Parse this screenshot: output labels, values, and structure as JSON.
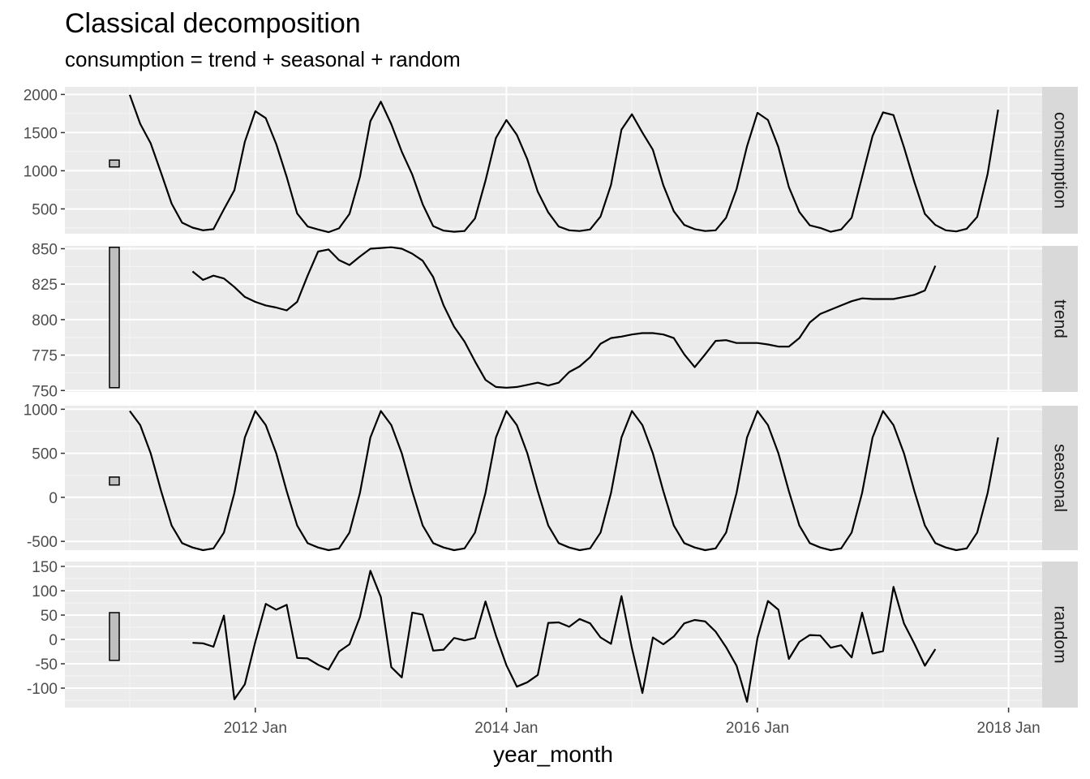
{
  "chart_data": {
    "type": "line",
    "title": "Classical decomposition",
    "subtitle": "consumption = trend + seasonal + random",
    "xlabel": "year_month",
    "x_start": "2011 Jan",
    "x_ticks": [
      "2012 Jan",
      "2014 Jan",
      "2016 Jan",
      "2018 Jan"
    ],
    "grid": true,
    "facet_strip_color": "#d9d9d9",
    "panel_color": "#ebebeb",
    "line_color": "#000000",
    "panels": [
      {
        "name": "consumption",
        "ylim": [
          175,
          2100
        ],
        "ticks": [
          500,
          1000,
          1500,
          2000
        ],
        "tick_labels": [
          "500",
          "1000",
          "1500",
          "2000"
        ],
        "scale_bar": [
          1050,
          1140
        ],
        "start_index": 0,
        "values": [
          1995,
          1615,
          1360,
          970,
          570,
          320,
          255,
          220,
          235,
          495,
          745,
          1380,
          1780,
          1690,
          1350,
          920,
          440,
          270,
          230,
          195,
          245,
          435,
          920,
          1650,
          1905,
          1610,
          1250,
          950,
          560,
          275,
          215,
          200,
          210,
          375,
          870,
          1430,
          1665,
          1470,
          1150,
          725,
          455,
          270,
          220,
          210,
          230,
          400,
          815,
          1540,
          1740,
          1500,
          1275,
          810,
          470,
          290,
          235,
          210,
          220,
          385,
          760,
          1320,
          1760,
          1665,
          1310,
          785,
          460,
          285,
          250,
          200,
          230,
          385,
          920,
          1455,
          1765,
          1730,
          1310,
          850,
          435,
          290,
          220,
          205,
          240,
          395,
          960,
          1800
        ]
      },
      {
        "name": "trend",
        "ylim": [
          749,
          852
        ],
        "ticks": [
          750,
          775,
          800,
          825,
          850
        ],
        "tick_labels": [
          "750",
          "775",
          "800",
          "825",
          "850"
        ],
        "scale_bar": [
          752,
          851
        ],
        "start_index": 6,
        "values": [
          834,
          828,
          831,
          829,
          823,
          816,
          812.5,
          810,
          808.5,
          806.5,
          812.5,
          831,
          848,
          849.5,
          842,
          838.5,
          844.5,
          850,
          850.5,
          851,
          850,
          846.5,
          841.5,
          830,
          810,
          795,
          784.5,
          770.5,
          757.5,
          752.5,
          752,
          752.5,
          754,
          755.5,
          753.5,
          755.5,
          763,
          767,
          773.5,
          783,
          787,
          788,
          789.5,
          790.5,
          790.5,
          789.5,
          787,
          775.5,
          766.5,
          775.5,
          785,
          785.5,
          783.5,
          783.5,
          783.5,
          782.5,
          781,
          781,
          787,
          798,
          804,
          807,
          810,
          813,
          815,
          814.5,
          814.5,
          814.5,
          816,
          817.5,
          820.5,
          838
        ]
      },
      {
        "name": "seasonal",
        "ylim": [
          -600,
          1040
        ],
        "ticks": [
          -500,
          0,
          500,
          1000
        ],
        "tick_labels": [
          "-500",
          "0",
          "500",
          "1000"
        ],
        "scale_bar": [
          140,
          230
        ],
        "start_index": 0,
        "values": [
          980,
          820,
          500,
          70,
          -320,
          -520,
          -570,
          -600,
          -580,
          -400,
          50,
          680,
          980,
          820,
          500,
          70,
          -320,
          -520,
          -570,
          -600,
          -580,
          -400,
          50,
          680,
          980,
          820,
          500,
          70,
          -320,
          -520,
          -570,
          -600,
          -580,
          -400,
          50,
          680,
          980,
          820,
          500,
          70,
          -320,
          -520,
          -570,
          -600,
          -580,
          -400,
          50,
          680,
          980,
          820,
          500,
          70,
          -320,
          -520,
          -570,
          -600,
          -580,
          -400,
          50,
          680,
          980,
          820,
          500,
          70,
          -320,
          -520,
          -570,
          -600,
          -580,
          -400,
          50,
          680,
          980,
          820,
          500,
          70,
          -320,
          -520,
          -570,
          -600,
          -580,
          -400,
          50,
          680
        ]
      },
      {
        "name": "random",
        "ylim": [
          -140,
          160
        ],
        "ticks": [
          -100,
          -50,
          0,
          50,
          100,
          150
        ],
        "tick_labels": [
          "-100",
          "-50",
          "0",
          "50",
          "100",
          "150"
        ],
        "scale_bar": [
          -43,
          55
        ],
        "start_index": 6,
        "values": [
          -7,
          -8,
          -15,
          49,
          -123,
          -92,
          -5,
          73,
          61,
          71,
          -38,
          -39,
          -52,
          -62,
          -25,
          -10,
          46,
          141,
          87,
          -57,
          -78,
          55,
          51,
          -23,
          -21,
          3,
          -2,
          3,
          78,
          8,
          -53,
          -97,
          -88,
          -73,
          34,
          35,
          26,
          42,
          33,
          4,
          -9,
          89,
          -18,
          -110,
          4,
          -10,
          6,
          33,
          40,
          37,
          16,
          -16,
          -54,
          -128,
          3,
          79,
          61,
          -40,
          -5,
          9,
          8,
          -17,
          -12,
          -37,
          55,
          -29,
          -24,
          108,
          33,
          -9,
          -54,
          -20
        ]
      }
    ]
  }
}
